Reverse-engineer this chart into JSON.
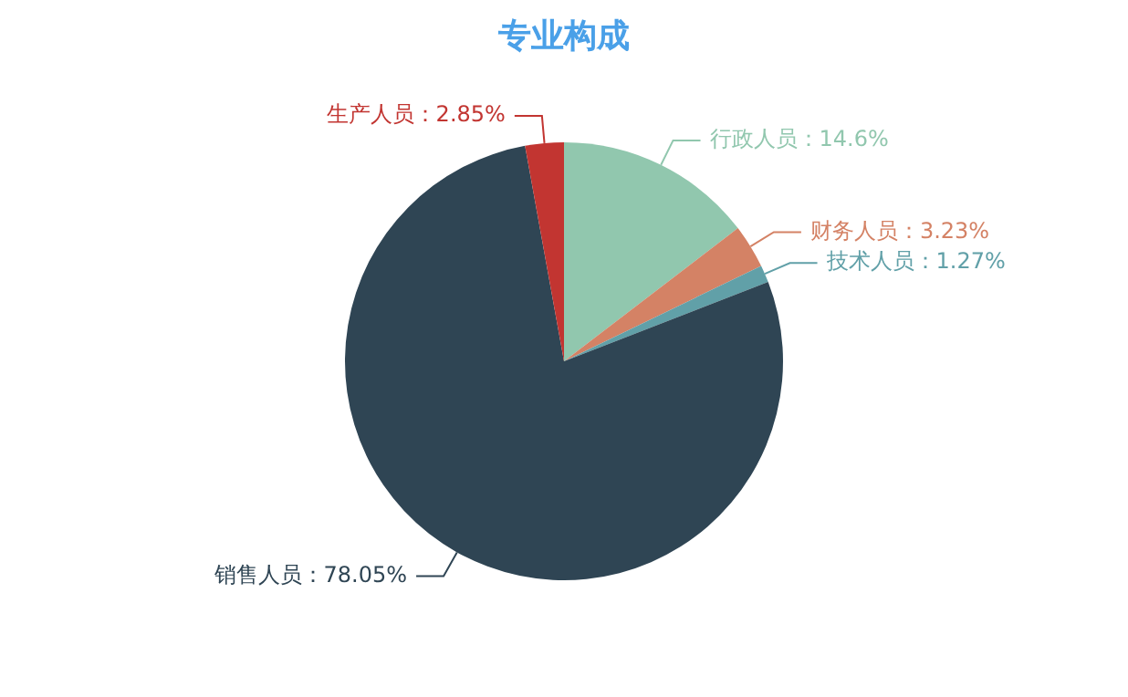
{
  "chart_data": {
    "type": "pie",
    "title": "专业构成",
    "categories": [
      "行政人员",
      "财务人员",
      "技术人员",
      "销售人员",
      "生产人员"
    ],
    "values": [
      14.6,
      3.23,
      1.27,
      78.05,
      2.85
    ],
    "value_labels": [
      "：14.6%",
      "：3.23%",
      "：1.27%",
      "：78.05%",
      "：2.85%"
    ],
    "colors": [
      "#91c7ae",
      "#d48265",
      "#61a0a8",
      "#2f4554",
      "#c23531"
    ],
    "legend": false
  }
}
